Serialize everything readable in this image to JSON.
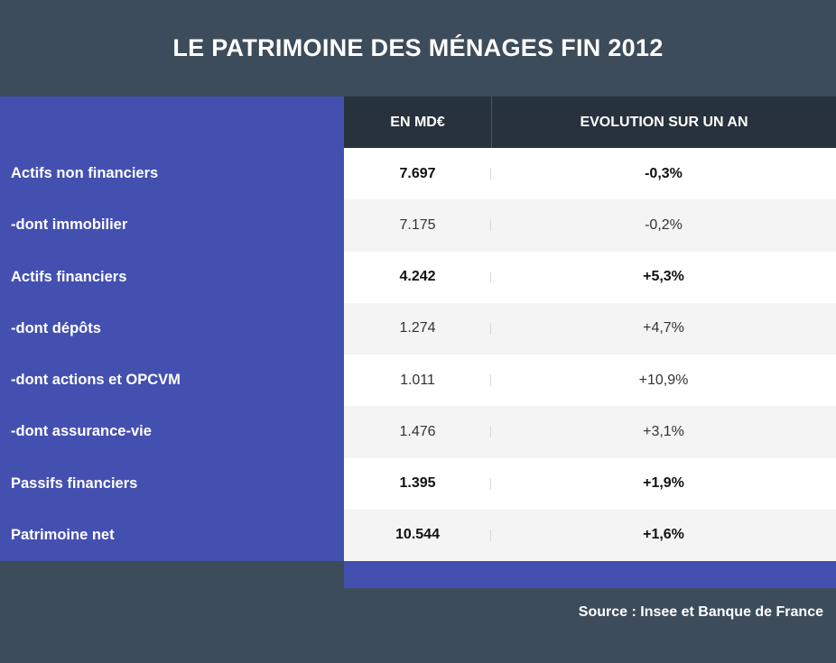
{
  "title": "LE PATRIMOINE DES MÉNAGES FIN 2012",
  "source": "Source : Insee et Banque de France",
  "chart_data": {
    "type": "table",
    "columns": [
      "",
      "EN MD€",
      "EVOLUTION SUR UN AN"
    ],
    "rows": [
      {
        "label": "Actifs non financiers",
        "value": "7.697",
        "evolution": "-0,3%",
        "bold": true
      },
      {
        "label": "-dont immobilier",
        "value": "7.175",
        "evolution": "-0,2%",
        "bold": false
      },
      {
        "label": "Actifs financiers",
        "value": "4.242",
        "evolution": "+5,3%",
        "bold": true
      },
      {
        "label": "-dont dépôts",
        "value": "1.274",
        "evolution": "+4,7%",
        "bold": false
      },
      {
        "label": "-dont actions et OPCVM",
        "value": "1.011",
        "evolution": "+10,9%",
        "bold": false
      },
      {
        "label": "-dont assurance-vie",
        "value": "1.476",
        "evolution": "+3,1%",
        "bold": false
      },
      {
        "label": "Passifs financiers",
        "value": "1.395",
        "evolution": "+1,9%",
        "bold": true
      },
      {
        "label": "Patrimoine net",
        "value": "10.544",
        "evolution": "+1,6%",
        "bold": true
      }
    ]
  },
  "colors": {
    "background": "#3d4c5b",
    "label_column": "#4450b0",
    "header": "#27323c",
    "row_white": "#ffffff",
    "row_grey": "#f4f4f4"
  }
}
